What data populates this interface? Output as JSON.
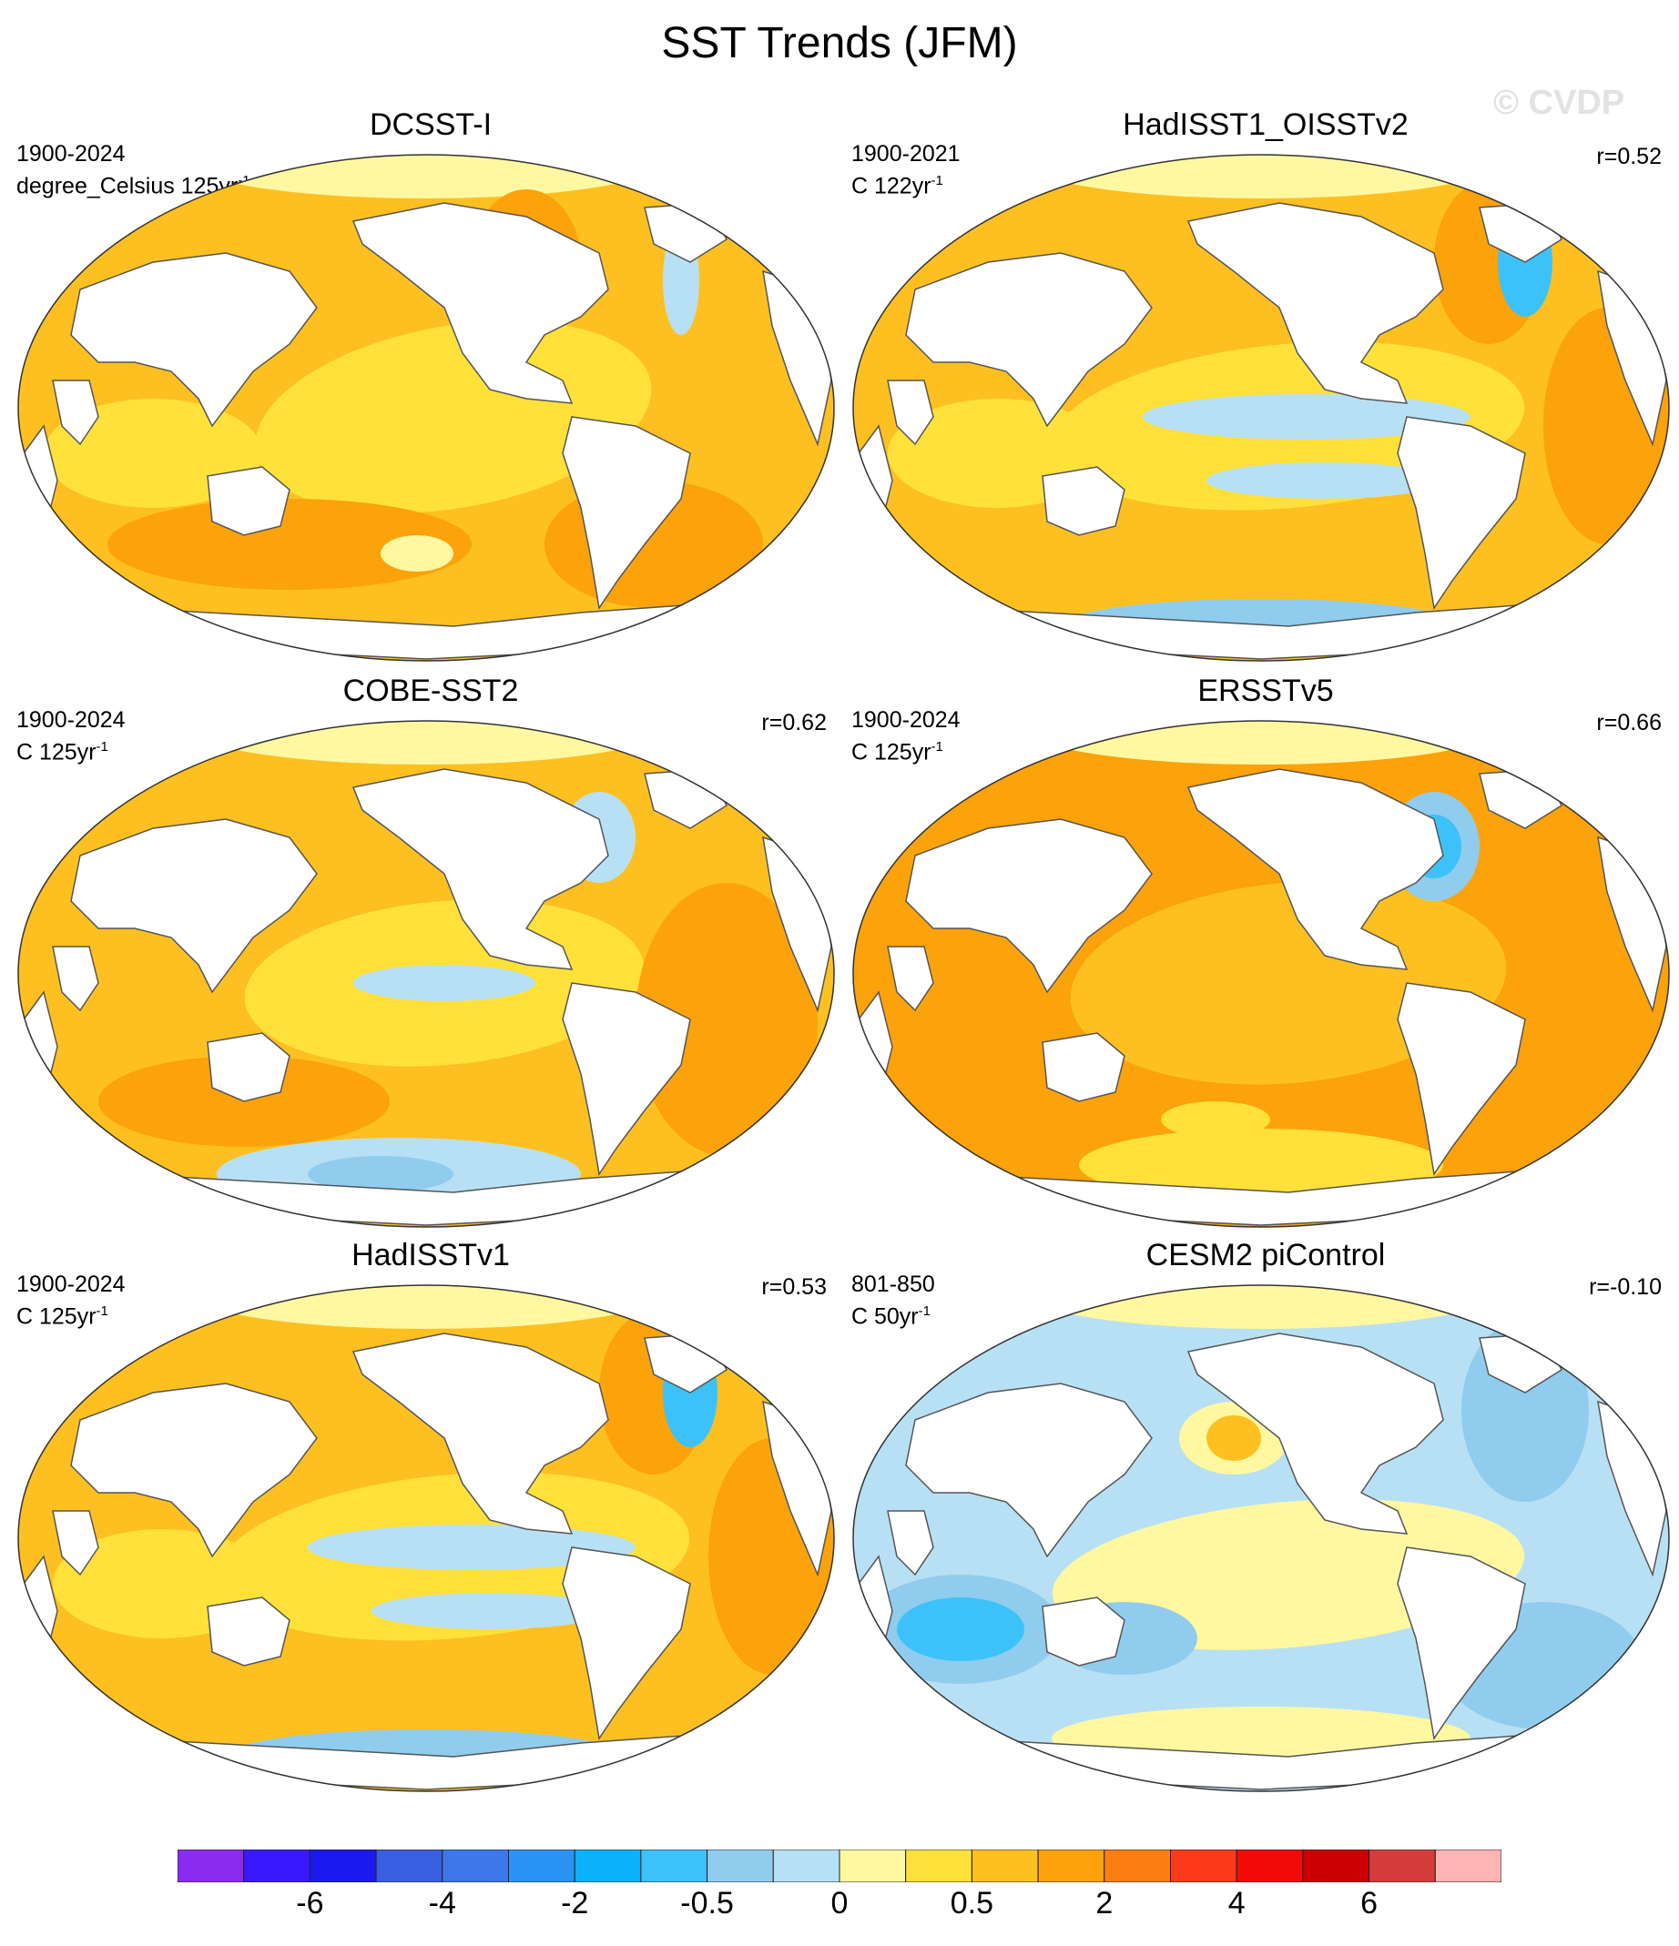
{
  "figure": {
    "title": "SST Trends (JFM)",
    "watermark": "© CVDP"
  },
  "panels": [
    {
      "name": "DCSST-I",
      "period": "1900-2024",
      "units_base": "degree_Celsius 125yr",
      "units_exp": "-1",
      "corr": "",
      "scheme": "warm"
    },
    {
      "name": "HadISST1_OISSTv2",
      "period": "1900-2021",
      "units_base": "C 122yr",
      "units_exp": "-1",
      "corr": "r=0.52",
      "scheme": "mixed"
    },
    {
      "name": "COBE-SST2",
      "period": "1900-2024",
      "units_base": "C 125yr",
      "units_exp": "-1",
      "corr": "r=0.62",
      "scheme": "warm-cool-south"
    },
    {
      "name": "ERSSTv5",
      "period": "1900-2024",
      "units_base": "C 125yr",
      "units_exp": "-1",
      "corr": "r=0.66",
      "scheme": "warm-strong"
    },
    {
      "name": "HadISSTv1",
      "period": "1900-2024",
      "units_base": "C 125yr",
      "units_exp": "-1",
      "corr": "r=0.53",
      "scheme": "mixed"
    },
    {
      "name": "CESM2 piControl",
      "period": "801-850",
      "units_base": "C 50yr",
      "units_exp": "-1",
      "corr": "r=-0.10",
      "scheme": "cool"
    }
  ],
  "colorbar": {
    "colors": [
      "#8a2bf2",
      "#3a18ff",
      "#1a1aef",
      "#3a5ee0",
      "#3c78ea",
      "#2a94f5",
      "#0bb1fb",
      "#3cc2f8",
      "#90ccee",
      "#b8e0f4",
      "#fff8a0",
      "#ffe13a",
      "#fdc020",
      "#fca20a",
      "#fc7e10",
      "#fa3a18",
      "#f50a0a",
      "#cc0000",
      "#d63c3c",
      "#fcb4b4"
    ],
    "labels": [
      {
        "text": "-6",
        "index": 2
      },
      {
        "text": "-4",
        "index": 4
      },
      {
        "text": "-2",
        "index": 6
      },
      {
        "text": "-0.5",
        "index": 8
      },
      {
        "text": "0",
        "index": 10
      },
      {
        "text": "0.5",
        "index": 12
      },
      {
        "text": "2",
        "index": 14
      },
      {
        "text": "4",
        "index": 16
      },
      {
        "text": "6",
        "index": 18
      }
    ]
  },
  "colors": {
    "ocean_yellow": "#ffe13a",
    "ocean_gold": "#fdc020",
    "ocean_orange": "#fca20a",
    "ocean_dark_orange": "#fc7e10",
    "ocean_light_yellow": "#fff8a0",
    "ocean_light_blue": "#b8e0f4",
    "ocean_blue": "#90ccee",
    "ocean_mid_blue": "#3cc2f8",
    "land": "#ffffff",
    "coast": "#555555"
  }
}
